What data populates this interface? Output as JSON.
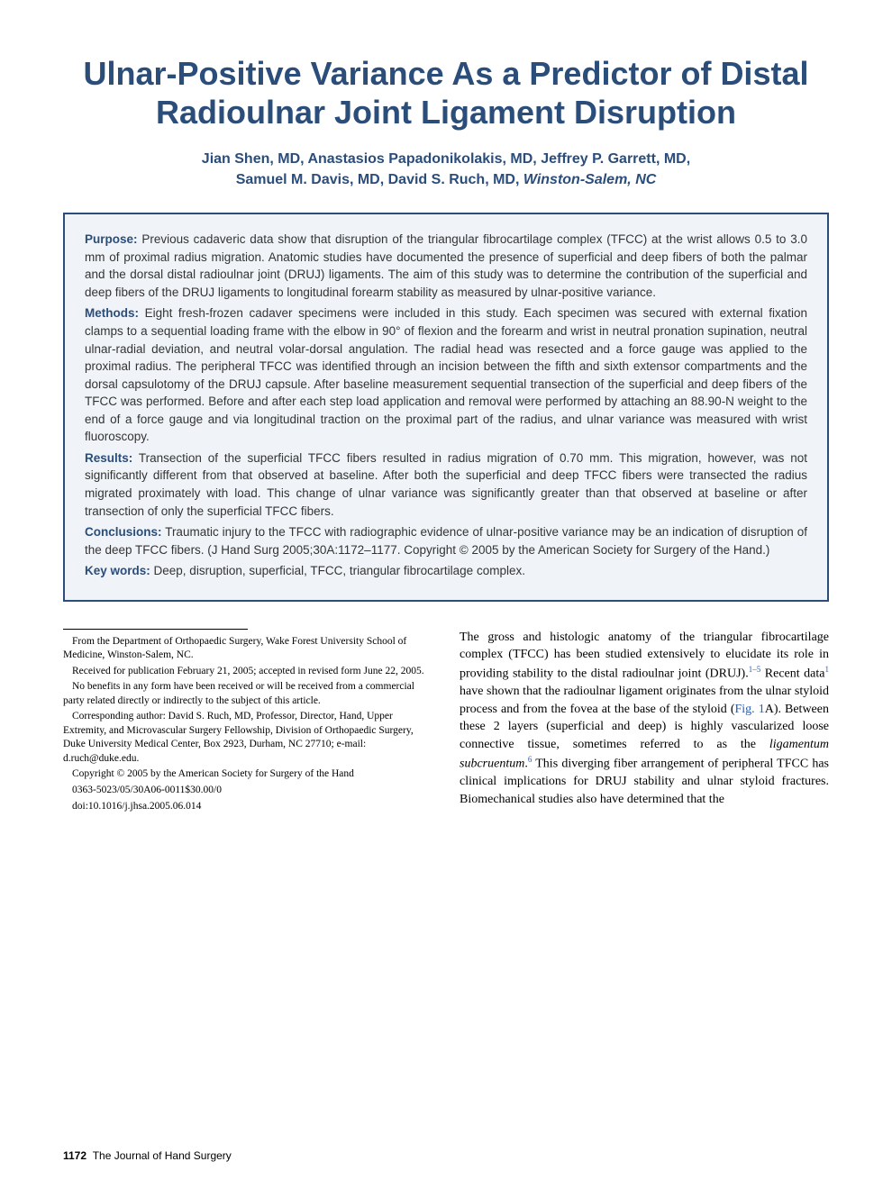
{
  "title": "Ulnar-Positive Variance As a Predictor of Distal Radioulnar Joint Ligament Disruption",
  "authors_line1": "Jian Shen, MD, Anastasios Papadonikolakis, MD, Jeffrey P. Garrett, MD,",
  "authors_line2": "Samuel M. Davis, MD, David S. Ruch, MD,",
  "location": "Winston-Salem, NC",
  "abstract": {
    "purpose_label": "Purpose:",
    "purpose_text": " Previous cadaveric data show that disruption of the triangular fibrocartilage complex (TFCC) at the wrist allows 0.5 to 3.0 mm of proximal radius migration. Anatomic studies have documented the presence of superficial and deep fibers of both the palmar and the dorsal distal radioulnar joint (DRUJ) ligaments. The aim of this study was to determine the contribution of the superficial and deep fibers of the DRUJ ligaments to longitudinal forearm stability as measured by ulnar-positive variance.",
    "methods_label": "Methods:",
    "methods_text": " Eight fresh-frozen cadaver specimens were included in this study. Each specimen was secured with external fixation clamps to a sequential loading frame with the elbow in 90° of flexion and the forearm and wrist in neutral pronation supination, neutral ulnar-radial deviation, and neutral volar-dorsal angulation. The radial head was resected and a force gauge was applied to the proximal radius. The peripheral TFCC was identified through an incision between the fifth and sixth extensor compartments and the dorsal capsulotomy of the DRUJ capsule. After baseline measurement sequential transection of the superficial and deep fibers of the TFCC was performed. Before and after each step load application and removal were performed by attaching an 88.90-N weight to the end of a force gauge and via longitudinal traction on the proximal part of the radius, and ulnar variance was measured with wrist fluoroscopy.",
    "results_label": "Results:",
    "results_text": " Transection of the superficial TFCC fibers resulted in radius migration of 0.70 mm. This migration, however, was not significantly different from that observed at baseline. After both the superficial and deep TFCC fibers were transected the radius migrated proximately with load. This change of ulnar variance was significantly greater than that observed at baseline or after transection of only the superficial TFCC fibers.",
    "conclusions_label": "Conclusions:",
    "conclusions_text": " Traumatic injury to the TFCC with radiographic evidence of ulnar-positive variance may be an indication of disruption of the deep TFCC fibers. (J Hand Surg 2005;30A:1172–1177. Copyright © 2005 by the American Society for Surgery of the Hand.)",
    "keywords_label": "Key words:",
    "keywords_text": " Deep, disruption, superficial, TFCC, triangular fibrocartilage complex."
  },
  "footnotes": {
    "from": "From the Department of Orthopaedic Surgery, Wake Forest University School of Medicine, Winston-Salem, NC.",
    "received": "Received for publication February 21, 2005; accepted in revised form June 22, 2005.",
    "benefits": "No benefits in any form have been received or will be received from a commercial party related directly or indirectly to the subject of this article.",
    "corresponding": "Corresponding author: David S. Ruch, MD, Professor, Director, Hand, Upper Extremity, and Microvascular Surgery Fellowship, Division of Orthopaedic Surgery, Duke University Medical Center, Box 2923, Durham, NC 27710; e-mail: d.ruch@duke.edu.",
    "copyright": "Copyright © 2005 by the American Society for Surgery of the Hand",
    "code": "0363-5023/05/30A06-0011$30.00/0",
    "doi": "doi:10.1016/j.jhsa.2005.06.014"
  },
  "body": {
    "para1_a": "The gross and histologic anatomy of the triangular fibrocartilage complex (TFCC) has been studied extensively to elucidate its role in providing stability to the distal radioulnar joint (DRUJ).",
    "sup1": "1–5",
    "para1_b": " Recent data",
    "sup2": "1",
    "para1_c": " have shown that the radioulnar ligament originates from the ulnar styloid process and from the fovea at the base of the styloid (",
    "figref": "Fig. 1",
    "para1_d": "A). Between these 2 layers (superficial and deep) is highly vascularized loose connective tissue, sometimes referred to as the ",
    "italic1": "ligamentum subcruentum",
    "para1_e": ".",
    "sup3": "6",
    "para1_f": " This diverging fiber arrangement of peripheral TFCC has clinical implications for DRUJ stability and ulnar styloid fractures. Biomechanical studies also have determined that the"
  },
  "footer": {
    "pagenum": "1172",
    "journal": "The Journal of Hand Surgery"
  },
  "colors": {
    "accent": "#2a4d7a",
    "abstract_bg": "#f0f4f8",
    "link": "#2a5db0",
    "text": "#000000",
    "abstract_text": "#333333"
  }
}
